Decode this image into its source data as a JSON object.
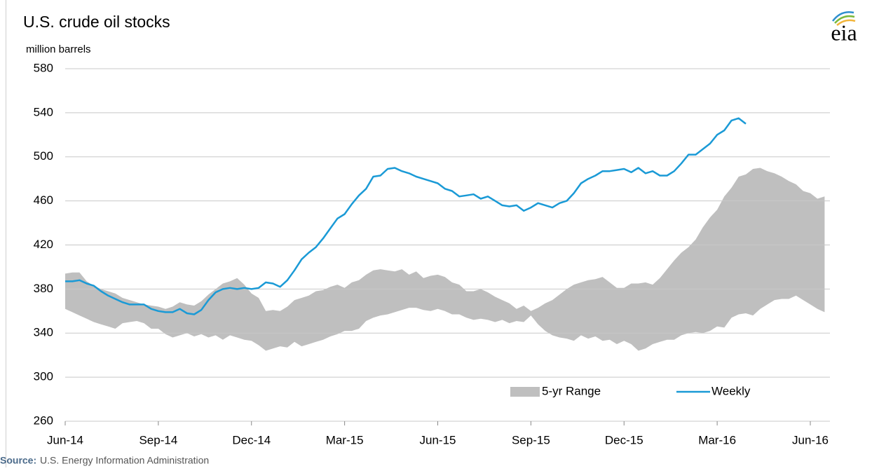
{
  "chart_data": {
    "type": "line",
    "title": "U.S. crude oil stocks",
    "y_axis_label": "million barrels",
    "logo": "eia",
    "source_label": "Source:",
    "source": "U.S. Energy Information Administration",
    "legend": "lower-right",
    "grid": true,
    "ylim": [
      260,
      580
    ],
    "yticks": [
      260,
      300,
      340,
      380,
      420,
      460,
      500,
      540,
      580
    ],
    "categories": [
      "Jun-14",
      null,
      null,
      null,
      null,
      null,
      null,
      null,
      null,
      null,
      null,
      null,
      null,
      "Sep-14",
      null,
      null,
      null,
      null,
      null,
      null,
      null,
      null,
      null,
      null,
      null,
      null,
      "Dec-14",
      null,
      null,
      null,
      null,
      null,
      null,
      null,
      null,
      null,
      null,
      null,
      null,
      "Mar-15",
      null,
      null,
      null,
      null,
      null,
      null,
      null,
      null,
      null,
      null,
      null,
      null,
      "Jun-15",
      null,
      null,
      null,
      null,
      null,
      null,
      null,
      null,
      null,
      null,
      null,
      null,
      "Sep-15",
      null,
      null,
      null,
      null,
      null,
      null,
      null,
      null,
      null,
      null,
      null,
      null,
      "Dec-15",
      null,
      null,
      null,
      null,
      null,
      null,
      null,
      null,
      null,
      null,
      null,
      null,
      "Mar-16",
      null,
      null,
      null,
      null,
      null,
      null,
      null,
      null,
      null,
      null,
      null,
      null,
      "Jun-16",
      null,
      null
    ],
    "series": [
      {
        "name": "5-yr Range",
        "type": "band",
        "color": "#bfbfbf",
        "high": [
          394,
          395,
          395,
          387,
          383,
          380,
          378,
          376,
          372,
          370,
          368,
          366,
          365,
          364,
          362,
          364,
          368,
          366,
          365,
          369,
          375,
          380,
          385,
          387,
          390,
          384,
          376,
          372,
          360,
          361,
          360,
          364,
          370,
          372,
          374,
          378,
          379,
          382,
          384,
          381,
          386,
          388,
          393,
          397,
          398,
          397,
          396,
          398,
          393,
          396,
          390,
          392,
          393,
          391,
          386,
          384,
          378,
          378,
          380,
          377,
          373,
          370,
          367,
          362,
          365,
          360,
          363,
          367,
          370,
          375,
          380,
          384,
          386,
          388,
          389,
          391,
          386,
          381,
          381,
          385,
          385,
          386,
          384,
          390,
          398,
          406,
          413,
          418,
          425,
          436,
          445,
          452,
          464,
          472,
          482,
          484,
          489,
          490,
          487,
          485,
          482,
          478,
          475,
          469,
          467,
          462,
          464
        ],
        "low": [
          362,
          359,
          356,
          353,
          350,
          348,
          346,
          344,
          349,
          350,
          351,
          349,
          344,
          344,
          339,
          336,
          338,
          340,
          337,
          339,
          336,
          338,
          334,
          338,
          336,
          334,
          333,
          329,
          324,
          326,
          328,
          327,
          332,
          328,
          330,
          332,
          334,
          337,
          339,
          342,
          342,
          344,
          351,
          354,
          356,
          357,
          359,
          361,
          363,
          363,
          361,
          360,
          362,
          360,
          357,
          357,
          354,
          352,
          353,
          352,
          350,
          352,
          349,
          351,
          350,
          356,
          348,
          342,
          338,
          336,
          335,
          333,
          338,
          335,
          337,
          333,
          334,
          330,
          333,
          330,
          324,
          326,
          330,
          332,
          334,
          334,
          338,
          340,
          341,
          340,
          342,
          346,
          345,
          354,
          357,
          358,
          356,
          362,
          366,
          370,
          371,
          371,
          374,
          370,
          366,
          362,
          359
        ]
      },
      {
        "name": "Weekly",
        "type": "line",
        "color": "#1a9ad6",
        "values": [
          387,
          387,
          388,
          385,
          383,
          378,
          374,
          371,
          368,
          366,
          366,
          366,
          362,
          360,
          359,
          359,
          362,
          358,
          357,
          361,
          370,
          377,
          380,
          381,
          380,
          381,
          380,
          381,
          386,
          385,
          382,
          388,
          397,
          407,
          413,
          418,
          426,
          435,
          444,
          448,
          457,
          465,
          471,
          482,
          483,
          489,
          490,
          487,
          485,
          482,
          480,
          478,
          476,
          471,
          469,
          464,
          465,
          466,
          462,
          464,
          460,
          456,
          455,
          456,
          451,
          454,
          458,
          456,
          454,
          458,
          460,
          467,
          476,
          480,
          483,
          487,
          487,
          488,
          489,
          486,
          490,
          485,
          487,
          483,
          483,
          487,
          494,
          502,
          502,
          507,
          512,
          520,
          524,
          533,
          535,
          530,
          null,
          null,
          null,
          null,
          null,
          null,
          null,
          null,
          null,
          null,
          null
        ]
      }
    ]
  }
}
